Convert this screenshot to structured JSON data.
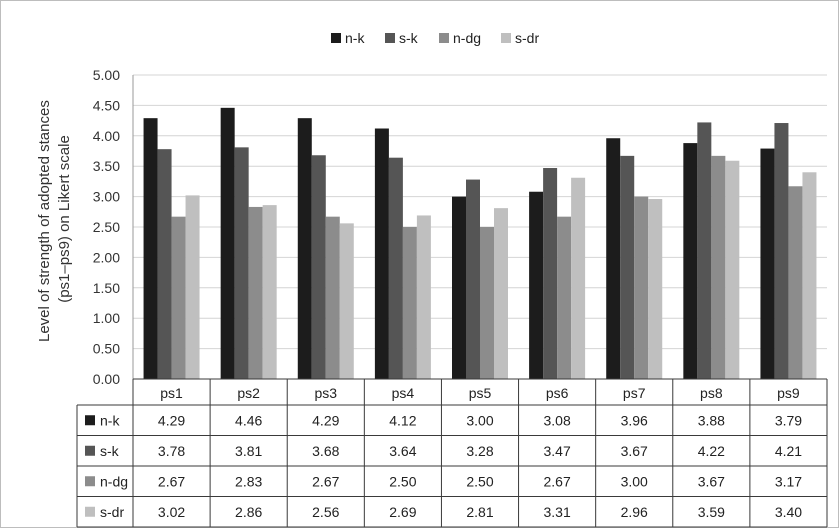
{
  "chart_data": {
    "type": "bar",
    "title": "",
    "ylabel_lines": [
      "Level of strength of adopted stances",
      "(ps1–ps9) on Likert scale"
    ],
    "xlabel": "",
    "ylim": [
      0,
      5
    ],
    "ytick_step": 0.5,
    "yticks": [
      "0.00",
      "0.50",
      "1.00",
      "1.50",
      "2.00",
      "2.50",
      "3.00",
      "3.50",
      "4.00",
      "4.50",
      "5.00"
    ],
    "grid": true,
    "legend_position": "top-center",
    "data_table": true,
    "categories": [
      "ps1",
      "ps2",
      "ps3",
      "ps4",
      "ps5",
      "ps6",
      "ps7",
      "ps8",
      "ps9"
    ],
    "series": [
      {
        "name": "n-k",
        "color": "#1c1c1c",
        "values": [
          4.29,
          4.46,
          4.29,
          4.12,
          3.0,
          3.08,
          3.96,
          3.88,
          3.79
        ],
        "labels": [
          "4.29",
          "4.46",
          "4.29",
          "4.12",
          "3.00",
          "3.08",
          "3.96",
          "3.88",
          "3.79"
        ]
      },
      {
        "name": "s-k",
        "color": "#555555",
        "values": [
          3.78,
          3.81,
          3.68,
          3.64,
          3.28,
          3.47,
          3.67,
          4.22,
          4.21
        ],
        "labels": [
          "3.78",
          "3.81",
          "3.68",
          "3.64",
          "3.28",
          "3.47",
          "3.67",
          "4.22",
          "4.21"
        ]
      },
      {
        "name": "n-dg",
        "color": "#8c8c8c",
        "values": [
          2.67,
          2.83,
          2.67,
          2.5,
          2.5,
          2.67,
          3.0,
          3.67,
          3.17
        ],
        "labels": [
          "2.67",
          "2.83",
          "2.67",
          "2.50",
          "2.50",
          "2.67",
          "3.00",
          "3.67",
          "3.17"
        ]
      },
      {
        "name": "s-dr",
        "color": "#bfbfbf",
        "values": [
          3.02,
          2.86,
          2.56,
          2.69,
          2.81,
          3.31,
          2.96,
          3.59,
          3.4
        ],
        "labels": [
          "3.02",
          "2.86",
          "2.56",
          "2.69",
          "2.81",
          "3.31",
          "2.96",
          "3.59",
          "3.40"
        ]
      }
    ]
  }
}
